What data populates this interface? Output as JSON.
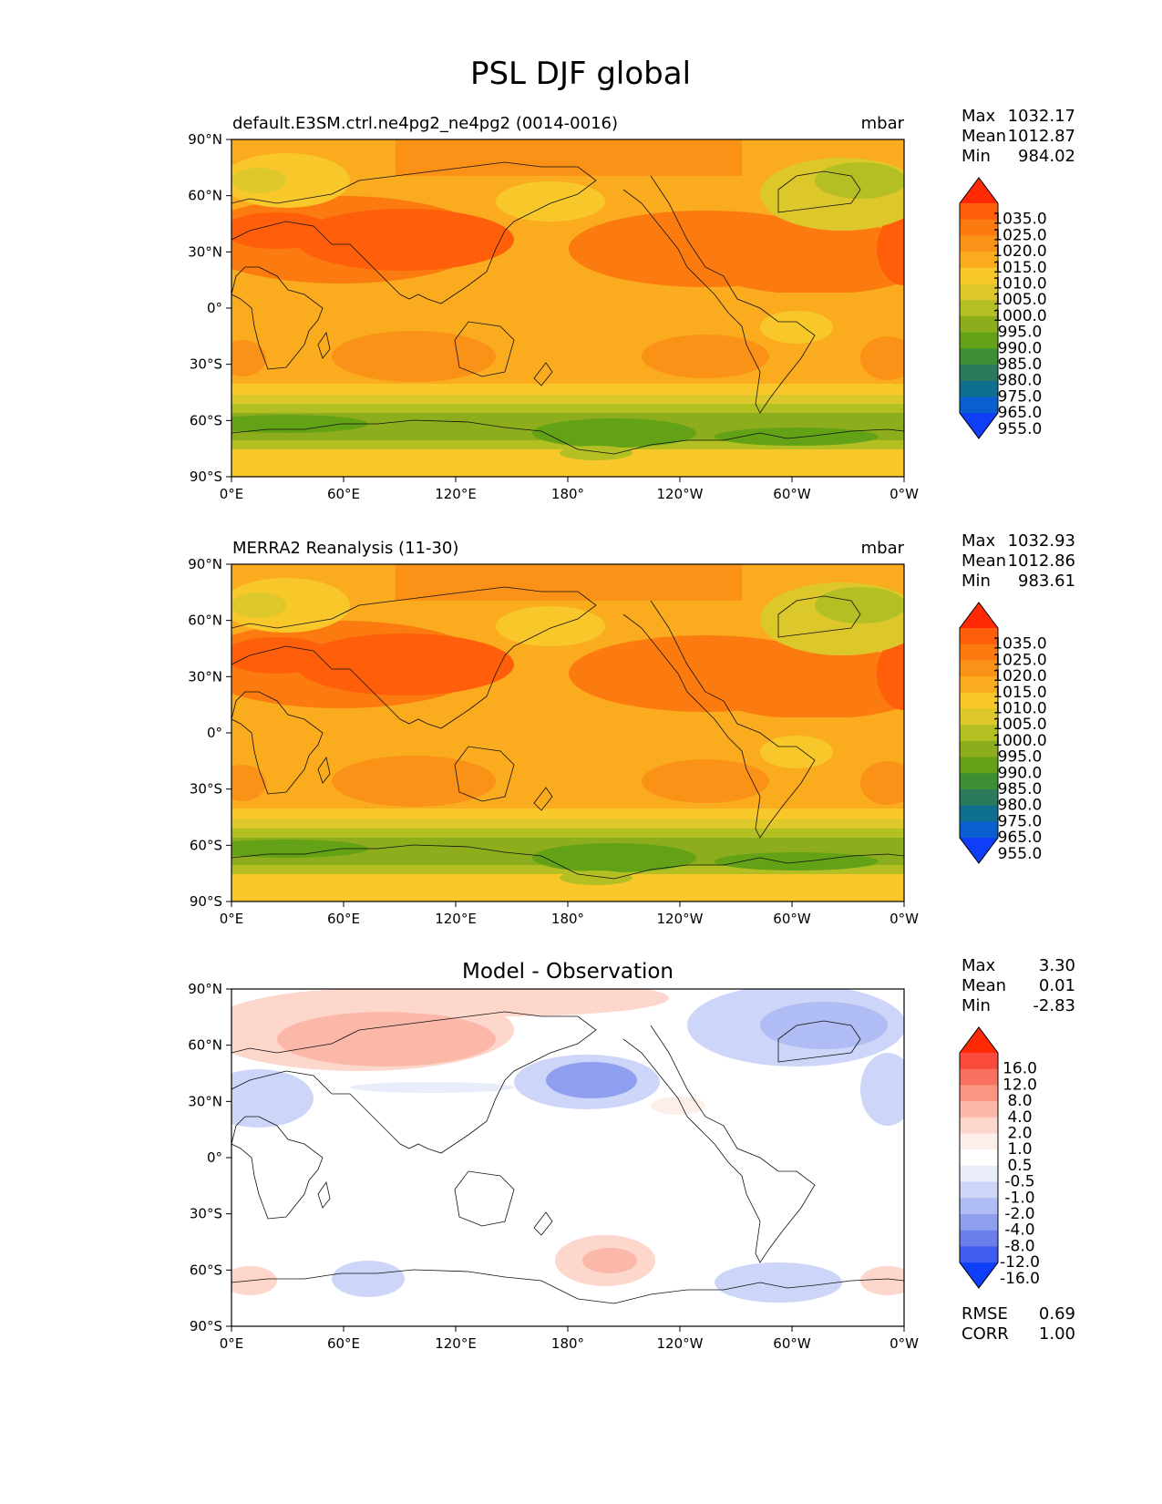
{
  "title": "PSL DJF global",
  "chart_data": [
    {
      "type": "heatmap",
      "title": "default.E3SM.ctrl.ne4pg2_ne4pg2 (0014-0016)",
      "units": "mbar",
      "stats": [
        {
          "label": "Max",
          "value": "1032.17"
        },
        {
          "label": "Mean",
          "value": "1012.87"
        },
        {
          "label": "Min",
          "value": "984.02"
        }
      ],
      "x_ticks": [
        "0°E",
        "60°E",
        "120°E",
        "180°",
        "120°W",
        "60°W",
        "0°W"
      ],
      "y_ticks": [
        "90°N",
        "60°N",
        "30°N",
        "0°",
        "30°S",
        "60°S",
        "90°S"
      ],
      "xlim": [
        0,
        360
      ],
      "ylim": [
        -90,
        90
      ],
      "colorbar": {
        "levels": [
          "1035.0",
          "1025.0",
          "1020.0",
          "1015.0",
          "1010.0",
          "1005.0",
          "1000.0",
          "995.0",
          "990.0",
          "985.0",
          "980.0",
          "975.0",
          "965.0",
          "955.0"
        ],
        "colors": [
          "#ff2a05",
          "#ff5f0b",
          "#fc7b10",
          "#fa9217",
          "#faab1e",
          "#f8c82a",
          "#ddc82b",
          "#b3bf23",
          "#8ead1d",
          "#63a216",
          "#3d8f35",
          "#2b7a5c",
          "#0f6f8f",
          "#0a5fd0",
          "#0f3ef8"
        ]
      }
    },
    {
      "type": "heatmap",
      "title": "MERRA2 Reanalysis (11-30)",
      "units": "mbar",
      "stats": [
        {
          "label": "Max",
          "value": "1032.93"
        },
        {
          "label": "Mean",
          "value": "1012.86"
        },
        {
          "label": "Min",
          "value": "983.61"
        }
      ],
      "x_ticks": [
        "0°E",
        "60°E",
        "120°E",
        "180°",
        "120°W",
        "60°W",
        "0°W"
      ],
      "y_ticks": [
        "90°N",
        "60°N",
        "30°N",
        "0°",
        "30°S",
        "60°S",
        "90°S"
      ],
      "xlim": [
        0,
        360
      ],
      "ylim": [
        -90,
        90
      ],
      "colorbar": {
        "levels": [
          "1035.0",
          "1025.0",
          "1020.0",
          "1015.0",
          "1010.0",
          "1005.0",
          "1000.0",
          "995.0",
          "990.0",
          "985.0",
          "980.0",
          "975.0",
          "965.0",
          "955.0"
        ],
        "colors": [
          "#ff2a05",
          "#ff5f0b",
          "#fc7b10",
          "#fa9217",
          "#faab1e",
          "#f8c82a",
          "#ddc82b",
          "#b3bf23",
          "#8ead1d",
          "#63a216",
          "#3d8f35",
          "#2b7a5c",
          "#0f6f8f",
          "#0a5fd0",
          "#0f3ef8"
        ]
      }
    },
    {
      "type": "heatmap",
      "title": "Model - Observation",
      "stats": [
        {
          "label": "Max",
          "value": "3.30"
        },
        {
          "label": "Mean",
          "value": "0.01"
        },
        {
          "label": "Min",
          "value": "-2.83"
        }
      ],
      "metrics": [
        {
          "label": "RMSE",
          "value": "0.69"
        },
        {
          "label": "CORR",
          "value": "1.00"
        }
      ],
      "x_ticks": [
        "0°E",
        "60°E",
        "120°E",
        "180°",
        "120°W",
        "60°W",
        "0°W"
      ],
      "y_ticks": [
        "90°N",
        "60°N",
        "30°N",
        "0°",
        "30°S",
        "60°S",
        "90°S"
      ],
      "xlim": [
        0,
        360
      ],
      "ylim": [
        -90,
        90
      ],
      "colorbar": {
        "levels": [
          "16.0",
          "12.0",
          "8.0",
          "4.0",
          "2.0",
          "1.0",
          "0.5",
          "-0.5",
          "-1.0",
          "-2.0",
          "-4.0",
          "-8.0",
          "-12.0",
          "-16.0"
        ],
        "colors": [
          "#ff2a05",
          "#f94a3c",
          "#f87060",
          "#f99580",
          "#fbb8a8",
          "#fdd6cc",
          "#fdeeea",
          "#ffffff",
          "#e8ecfb",
          "#cdd6f8",
          "#b0bcf4",
          "#8f9ff0",
          "#6a7eec",
          "#3f5cf0",
          "#0f3ef8"
        ]
      }
    }
  ]
}
